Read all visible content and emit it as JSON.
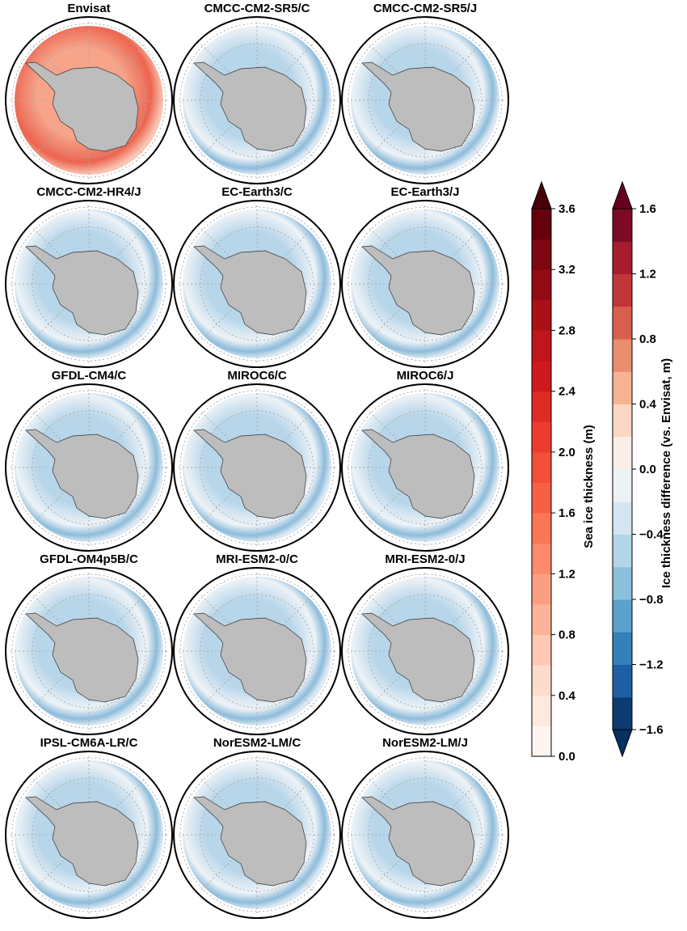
{
  "panels": [
    {
      "title": "Envisat"
    },
    {
      "title": "CMCC-CM2-SR5/C"
    },
    {
      "title": "CMCC-CM2-SR5/J"
    },
    {
      "title": "CMCC-CM2-HR4/J"
    },
    {
      "title": "EC-Earth3/C"
    },
    {
      "title": "EC-Earth3/J"
    },
    {
      "title": "GFDL-CM4/C"
    },
    {
      "title": "MIROC6/C"
    },
    {
      "title": "MIROC6/J"
    },
    {
      "title": "GFDL-OM4p5B/C"
    },
    {
      "title": "MRI-ESM2-0/C"
    },
    {
      "title": "MRI-ESM2-0/J"
    },
    {
      "title": "IPSL-CM6A-LR/C"
    },
    {
      "title": "NorESM2-LM/C"
    },
    {
      "title": "NorESM2-LM/J"
    }
  ],
  "colorbars": [
    {
      "label": "Sea ice thickness (m)",
      "lim": [
        0,
        3.6
      ],
      "extend": "max",
      "over_color": "#4a0008",
      "colors": [
        "#fff5f0",
        "#fee9df",
        "#fedccd",
        "#fdc9b4",
        "#fcb499",
        "#fc9f81",
        "#fc8a6b",
        "#fb7656",
        "#f86044",
        "#f44f39",
        "#ec3c30",
        "#dd2c25",
        "#ce1a1e",
        "#bf151b",
        "#ab1016",
        "#940b13",
        "#7d0610",
        "#67000d"
      ],
      "ticks": [
        {
          "value": 0,
          "label": "0.0"
        },
        0.4,
        0.8,
        1.2,
        1.6,
        {
          "value": 2,
          "label": "2.0"
        },
        2.4,
        2.8,
        3.2,
        3.6
      ]
    },
    {
      "label": "Ice thickness difference (vs. Envisat, m)",
      "lim": [
        -1.6,
        1.6
      ],
      "extend": "both",
      "under_color": "#053061",
      "over_color": "#67001f",
      "colors": [
        "#0b3b70",
        "#1d5fa2",
        "#3480b9",
        "#5aa2cd",
        "#8ac0db",
        "#b2d5e7",
        "#d4e6f0",
        "#edf2f5",
        "#f9ede7",
        "#fbd7c4",
        "#f6b394",
        "#ea8d6e",
        "#d6604d",
        "#c13639",
        "#a51c2e",
        "#7c0a22"
      ],
      "ticks": [
        {
          "value": -1.6,
          "label": "−1.6"
        },
        {
          "value": -1.2,
          "label": "−1.2"
        },
        {
          "value": -0.8,
          "label": "−0.8"
        },
        {
          "value": -0.4,
          "label": "−0.4"
        },
        {
          "value": 0,
          "label": "0.0"
        },
        0.4,
        0.8,
        1.2,
        1.6
      ]
    }
  ]
}
